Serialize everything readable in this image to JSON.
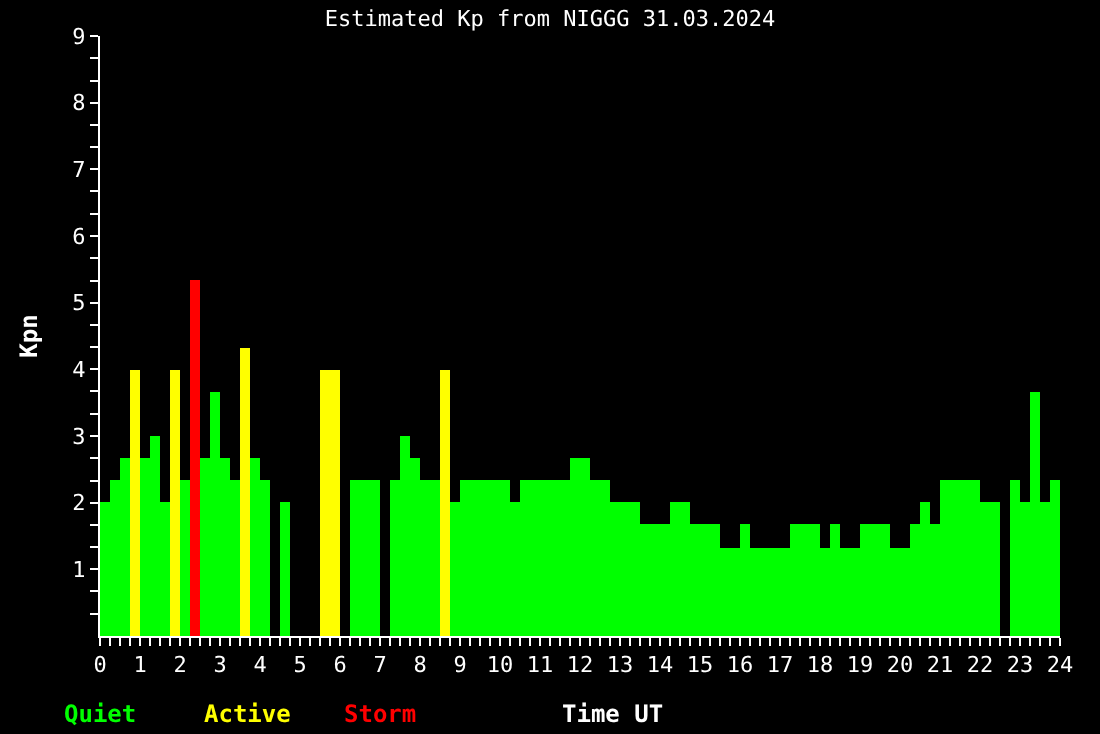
{
  "chart_data": {
    "type": "bar",
    "title": "Estimated Kp from NIGGG 31.03.2024",
    "xlabel": "Time UT",
    "ylabel": "Kpn",
    "x": [
      0.125,
      0.375,
      0.625,
      0.875,
      1.125,
      1.375,
      1.625,
      1.875,
      2.125,
      2.375,
      2.625,
      2.875,
      3.125,
      3.375,
      3.625,
      3.875,
      4.125,
      4.375,
      4.625,
      4.875,
      5.125,
      5.375,
      5.625,
      5.875,
      6.125,
      6.375,
      6.625,
      6.875,
      7.125,
      7.375,
      7.625,
      7.875,
      8.125,
      8.375,
      8.625,
      8.875,
      9.125,
      9.375,
      9.625,
      9.875,
      10.125,
      10.375,
      10.625,
      10.875,
      11.125,
      11.375,
      11.625,
      11.875,
      12.125,
      12.375,
      12.625,
      12.875,
      13.125,
      13.375,
      13.625,
      13.875,
      14.125,
      14.375,
      14.625,
      14.875,
      15.125,
      15.375,
      15.625,
      15.875,
      16.125,
      16.375,
      16.625,
      16.875,
      17.125,
      17.375,
      17.625,
      17.875,
      18.125,
      18.375,
      18.625,
      18.875,
      19.125,
      19.375,
      19.625,
      19.875,
      20.125,
      20.375,
      20.625,
      20.875,
      21.125,
      21.375,
      21.625,
      21.875,
      22.125,
      22.375,
      22.625,
      22.875,
      23.125,
      23.375,
      23.625,
      23.875
    ],
    "series": [
      {
        "name": "Quiet",
        "color": "#00ff00",
        "values": [
          2,
          2.33,
          2.67,
          null,
          2.67,
          3,
          2,
          null,
          2.33,
          null,
          2.67,
          3.67,
          2.67,
          2.33,
          null,
          2.67,
          2.33,
          null,
          2,
          null,
          null,
          null,
          null,
          null,
          null,
          2.33,
          2.33,
          2.33,
          null,
          2.33,
          3,
          2.67,
          2.33,
          2.33,
          null,
          2,
          2.33,
          2.33,
          2.33,
          2.33,
          2.33,
          2,
          2.33,
          2.33,
          2.33,
          2.33,
          2.33,
          2.67,
          2.67,
          2.33,
          2.33,
          2,
          2,
          2,
          1.67,
          1.67,
          1.67,
          2,
          2,
          1.67,
          1.67,
          1.67,
          1.33,
          1.33,
          1.67,
          1.33,
          1.33,
          1.33,
          1.33,
          1.67,
          1.67,
          1.67,
          1.33,
          1.67,
          1.33,
          1.33,
          1.67,
          1.67,
          1.67,
          1.33,
          1.33,
          1.67,
          2,
          1.67,
          2.33,
          2.33,
          2.33,
          2.33,
          2,
          2,
          null,
          2.33,
          2,
          3.67,
          2,
          2.33
        ]
      },
      {
        "name": "Active",
        "color": "#ffff00",
        "values": [
          null,
          null,
          null,
          4,
          null,
          null,
          null,
          4,
          null,
          null,
          null,
          null,
          null,
          null,
          4.33,
          null,
          null,
          null,
          null,
          null,
          null,
          null,
          4,
          4,
          null,
          null,
          null,
          null,
          null,
          null,
          null,
          null,
          null,
          null,
          4,
          null,
          null,
          null,
          null,
          null,
          null,
          null,
          null,
          null,
          null,
          null,
          null,
          null,
          null,
          null,
          null,
          null,
          null,
          null,
          null,
          null,
          null,
          null,
          null,
          null,
          null,
          null,
          null,
          null,
          null,
          null,
          null,
          null,
          null,
          null,
          null,
          null,
          null,
          null,
          null,
          null,
          null,
          null,
          null,
          null,
          null,
          null,
          null,
          null,
          null,
          null,
          null,
          null,
          null,
          null,
          null,
          null,
          null,
          null,
          null,
          null
        ]
      },
      {
        "name": "Storm",
        "color": "#ff0000",
        "values": [
          null,
          null,
          null,
          null,
          null,
          null,
          null,
          null,
          null,
          5.33,
          null,
          null,
          null,
          null,
          null,
          null,
          null,
          null,
          null,
          null,
          null,
          null,
          null,
          null,
          null,
          null,
          null,
          null,
          null,
          null,
          null,
          null,
          null,
          null,
          null,
          null,
          null,
          null,
          null,
          null,
          null,
          null,
          null,
          null,
          null,
          null,
          null,
          null,
          null,
          null,
          null,
          null,
          null,
          null,
          null,
          null,
          null,
          null,
          null,
          null,
          null,
          null,
          null,
          null,
          null,
          null,
          null,
          null,
          null,
          null,
          null,
          null,
          null,
          null,
          null,
          null,
          null,
          null,
          null,
          null,
          null,
          null,
          null,
          null,
          null,
          null,
          null,
          null,
          null,
          null,
          null,
          null,
          null,
          null,
          null,
          null
        ]
      }
    ],
    "xlim": [
      0,
      24
    ],
    "ylim": [
      0,
      9
    ],
    "xticks": [
      0,
      {
        "value": 0.25,
        "label": null
      },
      {
        "value": 0.5,
        "label": null
      },
      {
        "value": 0.75,
        "label": null
      },
      1,
      {
        "value": 1.25,
        "label": null
      },
      {
        "value": 1.5,
        "label": null
      },
      {
        "value": 1.75,
        "label": null
      },
      2,
      {
        "value": 2.25,
        "label": null
      },
      {
        "value": 2.5,
        "label": null
      },
      {
        "value": 2.75,
        "label": null
      },
      3,
      {
        "value": 3.25,
        "label": null
      },
      {
        "value": 3.5,
        "label": null
      },
      {
        "value": 3.75,
        "label": null
      },
      4,
      {
        "value": 4.25,
        "label": null
      },
      {
        "value": 4.5,
        "label": null
      },
      {
        "value": 4.75,
        "label": null
      },
      5,
      {
        "value": 5.25,
        "label": null
      },
      {
        "value": 5.5,
        "label": null
      },
      {
        "value": 5.75,
        "label": null
      },
      6,
      {
        "value": 6.25,
        "label": null
      },
      {
        "value": 6.5,
        "label": null
      },
      {
        "value": 6.75,
        "label": null
      },
      7,
      {
        "value": 7.25,
        "label": null
      },
      {
        "value": 7.5,
        "label": null
      },
      {
        "value": 7.75,
        "label": null
      },
      8,
      {
        "value": 8.25,
        "label": null
      },
      {
        "value": 8.5,
        "label": null
      },
      {
        "value": 8.75,
        "label": null
      },
      9,
      {
        "value": 9.25,
        "label": null
      },
      {
        "value": 9.5,
        "label": null
      },
      {
        "value": 9.75,
        "label": null
      },
      10,
      {
        "value": 10.25,
        "label": null
      },
      {
        "value": 10.5,
        "label": null
      },
      {
        "value": 10.75,
        "label": null
      },
      11,
      {
        "value": 11.25,
        "label": null
      },
      {
        "value": 11.5,
        "label": null
      },
      {
        "value": 11.75,
        "label": null
      },
      12,
      {
        "value": 12.25,
        "label": null
      },
      {
        "value": 12.5,
        "label": null
      },
      {
        "value": 12.75,
        "label": null
      },
      13,
      {
        "value": 13.25,
        "label": null
      },
      {
        "value": 13.5,
        "label": null
      },
      {
        "value": 13.75,
        "label": null
      },
      14,
      {
        "value": 14.25,
        "label": null
      },
      {
        "value": 14.5,
        "label": null
      },
      {
        "value": 14.75,
        "label": null
      },
      15,
      {
        "value": 15.25,
        "label": null
      },
      {
        "value": 15.5,
        "label": null
      },
      {
        "value": 15.75,
        "label": null
      },
      16,
      {
        "value": 16.25,
        "label": null
      },
      {
        "value": 16.5,
        "label": null
      },
      {
        "value": 16.75,
        "label": null
      },
      17,
      {
        "value": 17.25,
        "label": null
      },
      {
        "value": 17.5,
        "label": null
      },
      {
        "value": 17.75,
        "label": null
      },
      18,
      {
        "value": 18.25,
        "label": null
      },
      {
        "value": 18.5,
        "label": null
      },
      {
        "value": 18.75,
        "label": null
      },
      19,
      {
        "value": 19.25,
        "label": null
      },
      {
        "value": 19.5,
        "label": null
      },
      {
        "value": 19.75,
        "label": null
      },
      20,
      {
        "value": 20.25,
        "label": null
      },
      {
        "value": 20.5,
        "label": null
      },
      {
        "value": 20.75,
        "label": null
      },
      21,
      {
        "value": 21.25,
        "label": null
      },
      {
        "value": 21.5,
        "label": null
      },
      {
        "value": 21.75,
        "label": null
      },
      22,
      {
        "value": 22.25,
        "label": null
      },
      {
        "value": 22.5,
        "label": null
      },
      {
        "value": 22.75,
        "label": null
      },
      23,
      {
        "value": 23.25,
        "label": null
      },
      {
        "value": 23.5,
        "label": null
      },
      {
        "value": 23.75,
        "label": null
      },
      24
    ],
    "yticks": [
      {
        "value": 0.33,
        "label": null
      },
      {
        "value": 0.67,
        "label": null
      },
      1,
      {
        "value": 1.33,
        "label": null
      },
      {
        "value": 1.67,
        "label": null
      },
      2,
      {
        "value": 2.33,
        "label": null
      },
      {
        "value": 2.67,
        "label": null
      },
      3,
      {
        "value": 3.33,
        "label": null
      },
      {
        "value": 3.67,
        "label": null
      },
      4,
      {
        "value": 4.33,
        "label": null
      },
      {
        "value": 4.67,
        "label": null
      },
      5,
      {
        "value": 5.33,
        "label": null
      },
      {
        "value": 5.67,
        "label": null
      },
      6,
      {
        "value": 6.33,
        "label": null
      },
      {
        "value": 6.67,
        "label": null
      },
      7,
      {
        "value": 7.33,
        "label": null
      },
      {
        "value": 7.67,
        "label": null
      },
      8,
      {
        "value": 8.33,
        "label": null
      },
      {
        "value": 8.67,
        "label": null
      },
      9
    ],
    "legend": "bottom left",
    "grid": false
  }
}
